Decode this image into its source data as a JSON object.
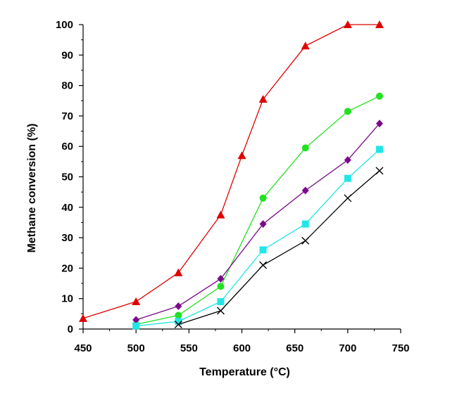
{
  "chart_data": {
    "type": "line",
    "title": "",
    "xlabel": "Temperature (°C)",
    "ylabel": "Methane conversion (%)",
    "xlim": [
      450,
      750
    ],
    "ylim": [
      0,
      100
    ],
    "xticks": [
      450,
      500,
      550,
      600,
      650,
      700,
      750
    ],
    "yticks": [
      0,
      10,
      20,
      30,
      40,
      50,
      60,
      70,
      80,
      90,
      100
    ],
    "grid": false,
    "legend": "none",
    "series": [
      {
        "color": "#e00000",
        "marker": "triangle",
        "x": [
          450,
          500,
          540,
          580,
          600,
          620,
          660,
          700,
          730
        ],
        "y": [
          3.5,
          9,
          18.5,
          37.5,
          57,
          75.5,
          93,
          100,
          100
        ]
      },
      {
        "color": "#22e022",
        "marker": "circle",
        "x": [
          500,
          540,
          580,
          620,
          660,
          700,
          730
        ],
        "y": [
          1.5,
          4.5,
          14,
          43,
          59.5,
          71.5,
          76.5
        ]
      },
      {
        "color": "#7a0a8a",
        "marker": "diamond",
        "x": [
          500,
          540,
          580,
          620,
          660,
          700,
          730
        ],
        "y": [
          3,
          7.5,
          16.5,
          34.5,
          45.5,
          55.5,
          67.5
        ]
      },
      {
        "color": "#22e6e6",
        "marker": "square",
        "x": [
          500,
          540,
          580,
          620,
          660,
          700,
          730
        ],
        "y": [
          1,
          2.5,
          9,
          26,
          34.5,
          49.5,
          59
        ]
      },
      {
        "color": "#000000",
        "marker": "x",
        "x": [
          540,
          580,
          620,
          660,
          700,
          730
        ],
        "y": [
          1.5,
          6,
          21,
          29,
          43,
          52
        ]
      }
    ]
  }
}
